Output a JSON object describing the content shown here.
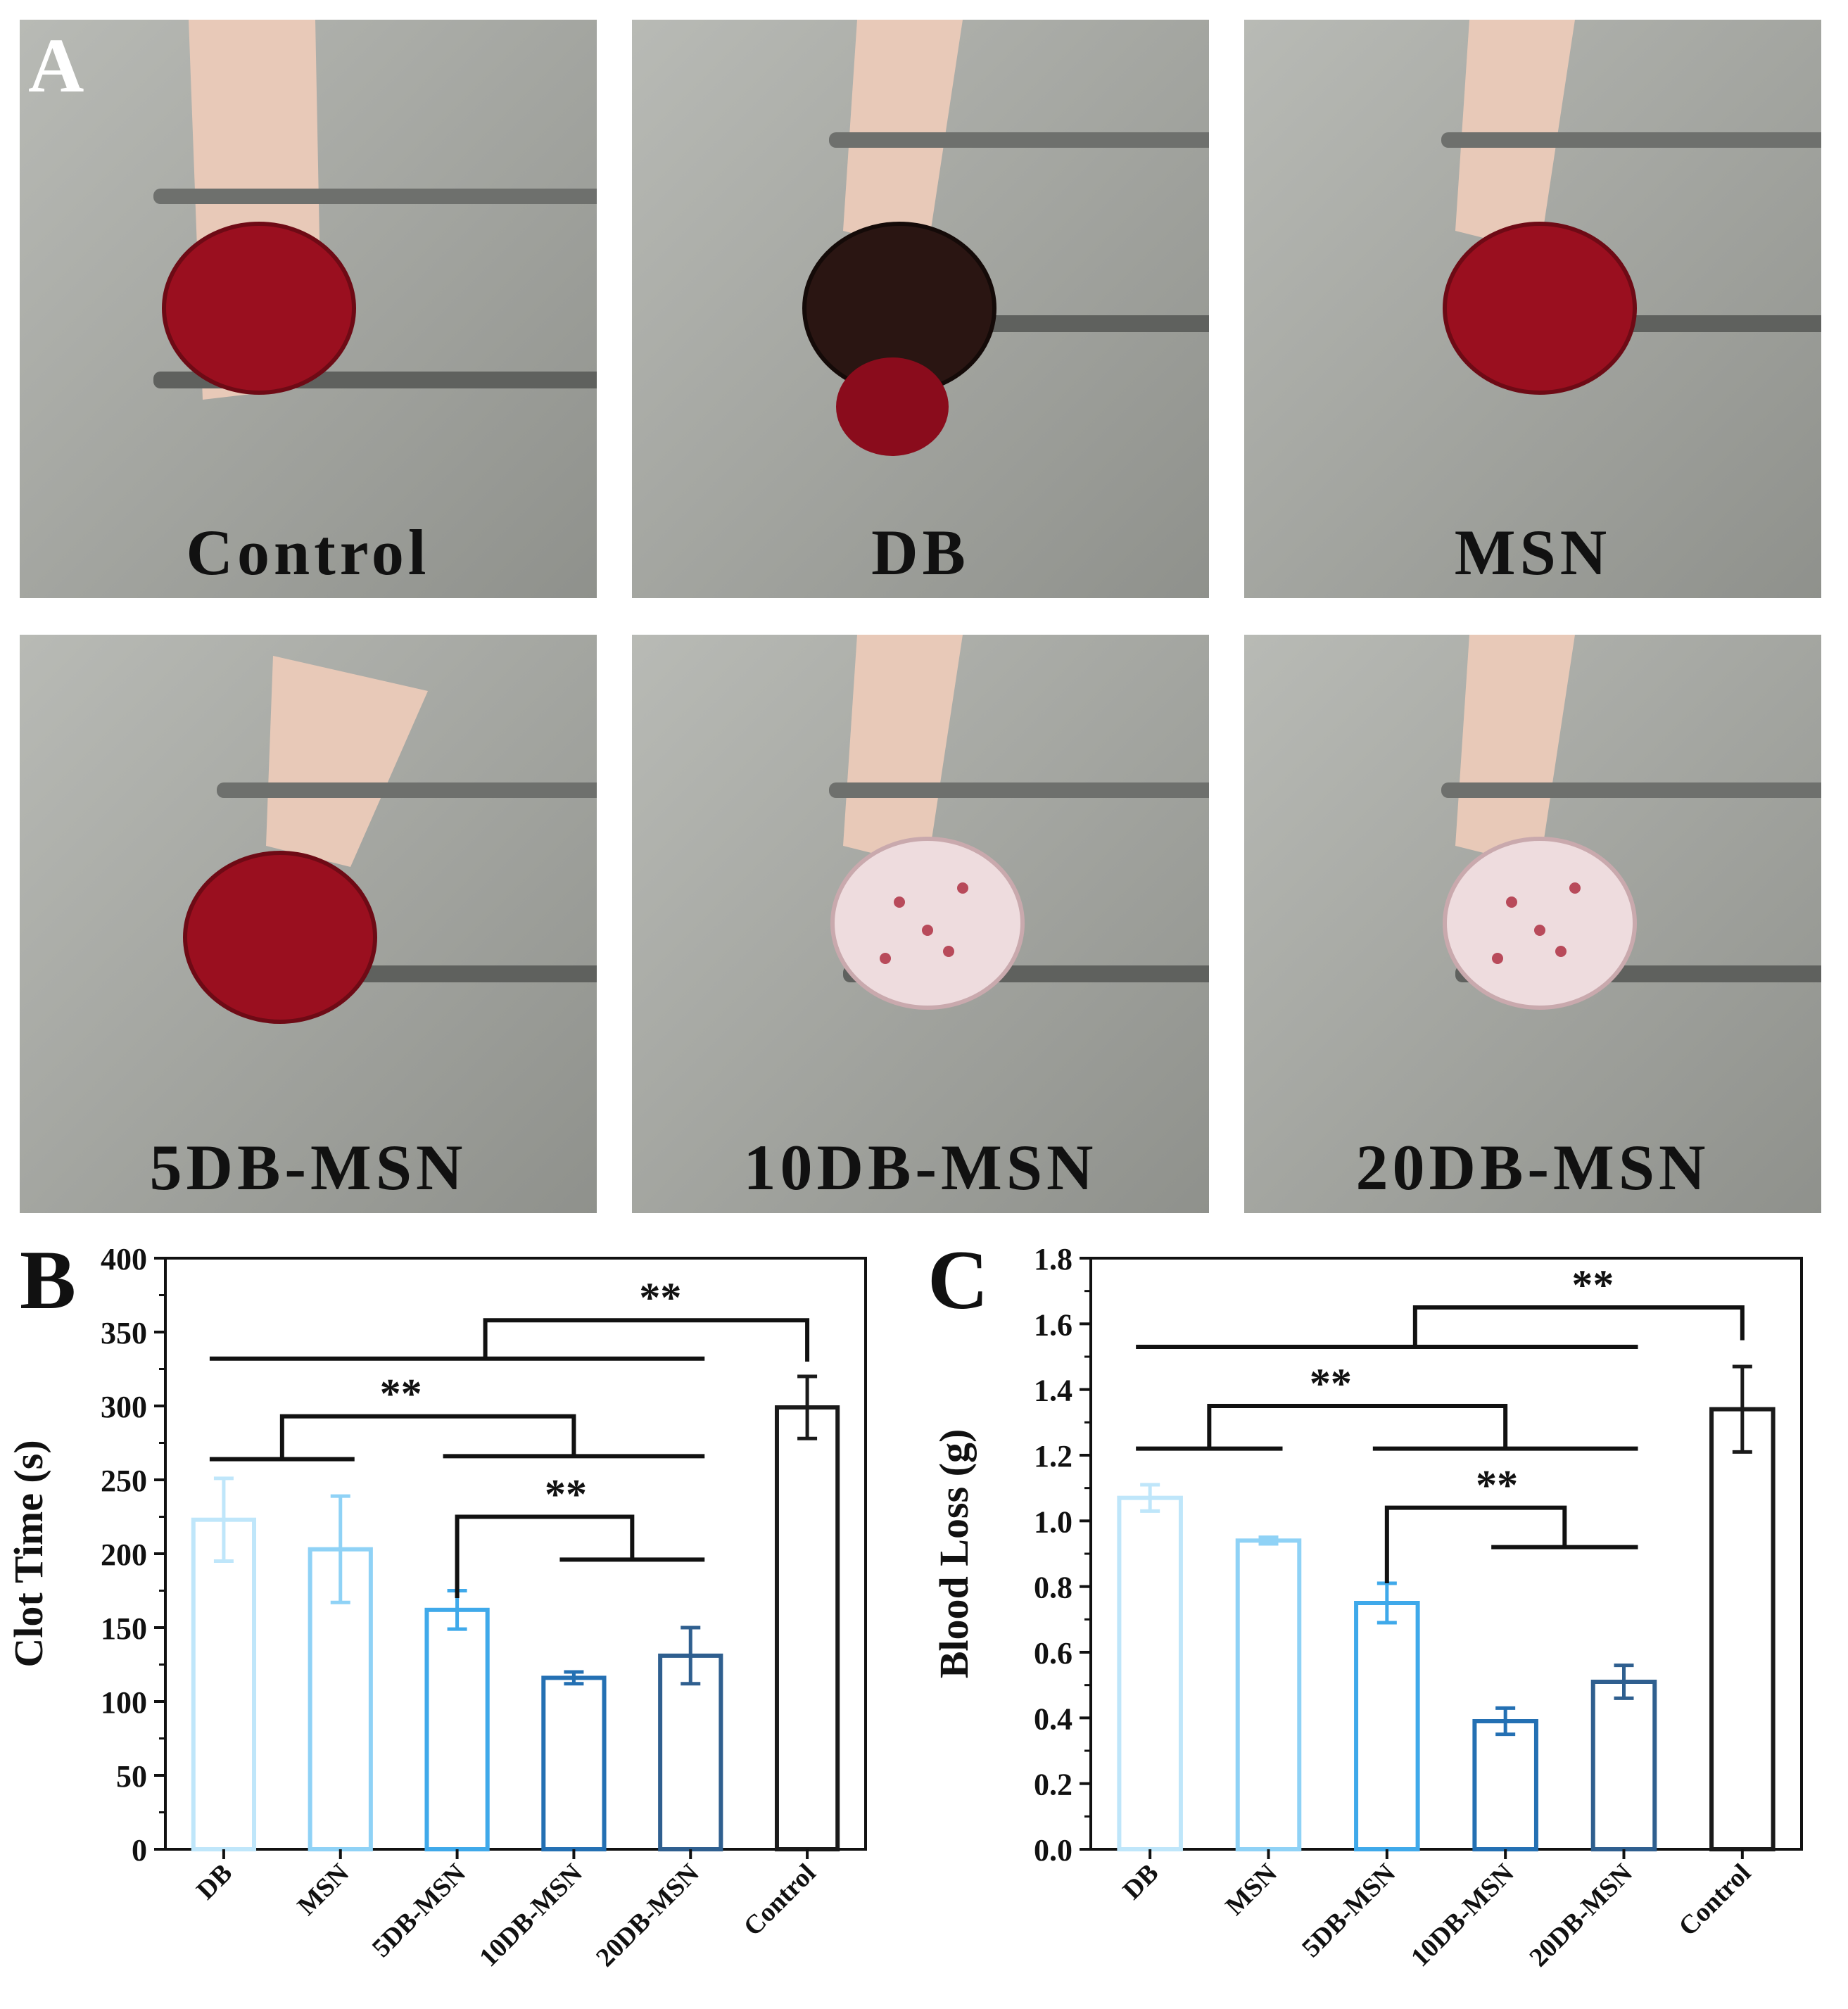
{
  "panel_a": {
    "letter": "A",
    "photos": [
      {
        "label": "Control",
        "clot": "red",
        "bg": "#9ea09a"
      },
      {
        "label": "DB",
        "clot": "dark",
        "bg": "#a6a8a3"
      },
      {
        "label": "MSN",
        "clot": "red",
        "bg": "#a8aaa5"
      },
      {
        "label": "5DB-MSN",
        "clot": "red",
        "bg": "#a4a6a1"
      },
      {
        "label": "10DB-MSN",
        "clot": "white",
        "bg": "#a7a9a4"
      },
      {
        "label": "20DB-MSN",
        "clot": "white",
        "bg": "#a4a6a1"
      }
    ]
  },
  "chart_data": [
    {
      "panel": "B",
      "type": "bar",
      "ylabel": "Clot Time (s)",
      "categories": [
        "DB",
        "MSN",
        "5DB-MSN",
        "10DB-MSN",
        "20DB-MSN",
        "Control"
      ],
      "values": [
        223,
        203,
        162,
        116,
        131,
        299
      ],
      "errors": [
        28,
        36,
        13,
        4,
        19,
        21
      ],
      "colors": [
        "#bfe6fa",
        "#8fd2f6",
        "#3fa9ea",
        "#2470b3",
        "#2f5f8f",
        "#1a1a1a"
      ],
      "ylim": [
        0,
        400
      ],
      "yticks": [
        0,
        50,
        100,
        150,
        200,
        250,
        300,
        350,
        400
      ],
      "significance": "**"
    },
    {
      "panel": "C",
      "type": "bar",
      "ylabel": "Blood Loss (g)",
      "categories": [
        "DB",
        "MSN",
        "5DB-MSN",
        "10DB-MSN",
        "20DB-MSN",
        "Control"
      ],
      "values": [
        1.07,
        0.94,
        0.75,
        0.39,
        0.51,
        1.34
      ],
      "errors": [
        0.04,
        0.01,
        0.06,
        0.04,
        0.05,
        0.13
      ],
      "colors": [
        "#bfe6fa",
        "#8fd2f6",
        "#3fa9ea",
        "#2470b3",
        "#2f5f8f",
        "#1a1a1a"
      ],
      "ylim": [
        0,
        1.8
      ],
      "yticks": [
        "0.0",
        "0.2",
        "0.4",
        "0.6",
        "0.8",
        "1.0",
        "1.2",
        "1.4",
        "1.6",
        "1.8"
      ],
      "significance": "**"
    }
  ]
}
